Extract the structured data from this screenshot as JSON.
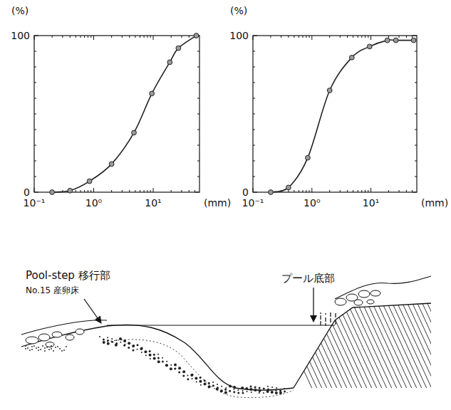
{
  "chart_data": [
    {
      "type": "line",
      "log": "x",
      "marker": "circle",
      "color": "#222222",
      "xlabel": "(mm)",
      "ylabel": "(%)",
      "xlim": [
        0.1,
        60
      ],
      "ylim": [
        0,
        100
      ],
      "xticks": [
        {
          "value": 0.1,
          "label": "10⁻¹"
        },
        {
          "value": 1,
          "label": "10⁰"
        },
        {
          "value": 10,
          "label": "10¹"
        }
      ],
      "yticks": [
        0,
        100
      ],
      "x": [
        0.2,
        0.4,
        0.85,
        2,
        4.75,
        9.5,
        19,
        26.5,
        53
      ],
      "series": [
        {
          "color": "#222222",
          "values": [
            0,
            1,
            7,
            18,
            38,
            63,
            83,
            92,
            100
          ]
        }
      ]
    },
    {
      "type": "line",
      "log": "x",
      "marker": "circle",
      "color": "#222222",
      "xlabel": "(mm)",
      "ylabel": "(%)",
      "xlim": [
        0.1,
        60
      ],
      "ylim": [
        0,
        100
      ],
      "xticks": [
        {
          "value": 0.1,
          "label": "10⁻¹"
        },
        {
          "value": 1,
          "label": "10⁰"
        },
        {
          "value": 10,
          "label": "10¹"
        }
      ],
      "yticks": [
        0,
        100
      ],
      "x": [
        0.2,
        0.4,
        0.85,
        2,
        4.75,
        9.5,
        19,
        26.5,
        53
      ],
      "series": [
        {
          "color": "#222222",
          "values": [
            0,
            3,
            22,
            65,
            86,
            93,
            97,
            97,
            97
          ]
        }
      ]
    }
  ],
  "diagram": {
    "transition_label": "Pool-step 移行部",
    "site_label": "No.15 産卵床",
    "pool_label": "プール底部"
  }
}
